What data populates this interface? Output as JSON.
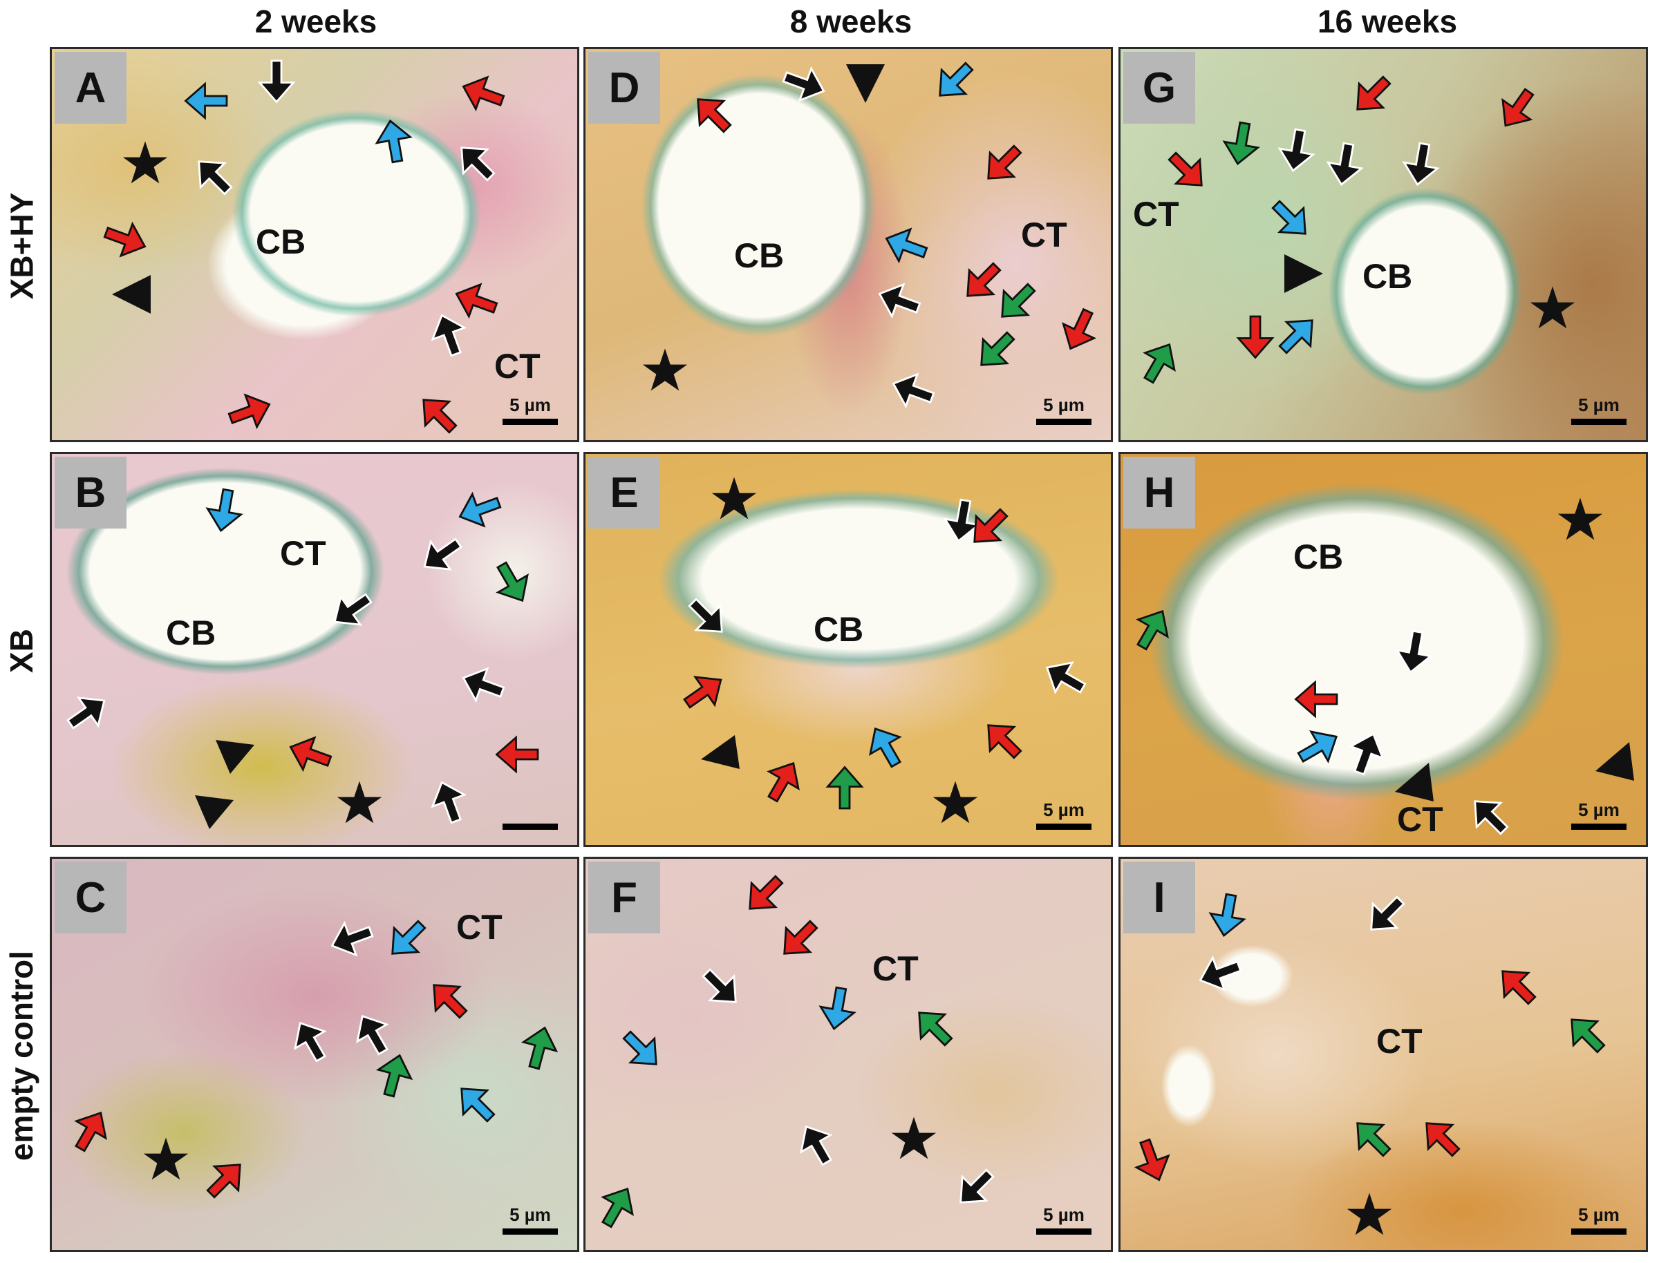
{
  "column_titles": [
    "2 weeks",
    "8 weeks",
    "16 weeks"
  ],
  "row_titles": [
    "XB+HY",
    "XB",
    "empty control"
  ],
  "colors": {
    "red_arrow": "#e3201b",
    "blue_arrow": "#2fa8e6",
    "green_arrow": "#1f9d48",
    "black_arrow": "#111111",
    "frame": "#2a2a2a",
    "letter_box": "#b7b7b7"
  },
  "panels": [
    {
      "letter": "A",
      "cb": "CB",
      "ct": "CT",
      "scale": "5 µm"
    },
    {
      "letter": "D",
      "cb": "CB",
      "ct": "CT",
      "scale": "5 µm"
    },
    {
      "letter": "G",
      "cb": "CB",
      "ct": "CT",
      "scale": "5 µm"
    },
    {
      "letter": "B",
      "cb": "CB",
      "ct": "CT",
      "scale": ""
    },
    {
      "letter": "E",
      "cb": "CB",
      "scale": "5 µm"
    },
    {
      "letter": "H",
      "cb": "CB",
      "ct": "CT",
      "scale": "5 µm"
    },
    {
      "letter": "C",
      "ct": "CT",
      "scale": "5 µm"
    },
    {
      "letter": "F",
      "ct": "CT",
      "scale": "5 µm"
    },
    {
      "letter": "I",
      "ct": "CT",
      "scale": "5 µm"
    }
  ]
}
